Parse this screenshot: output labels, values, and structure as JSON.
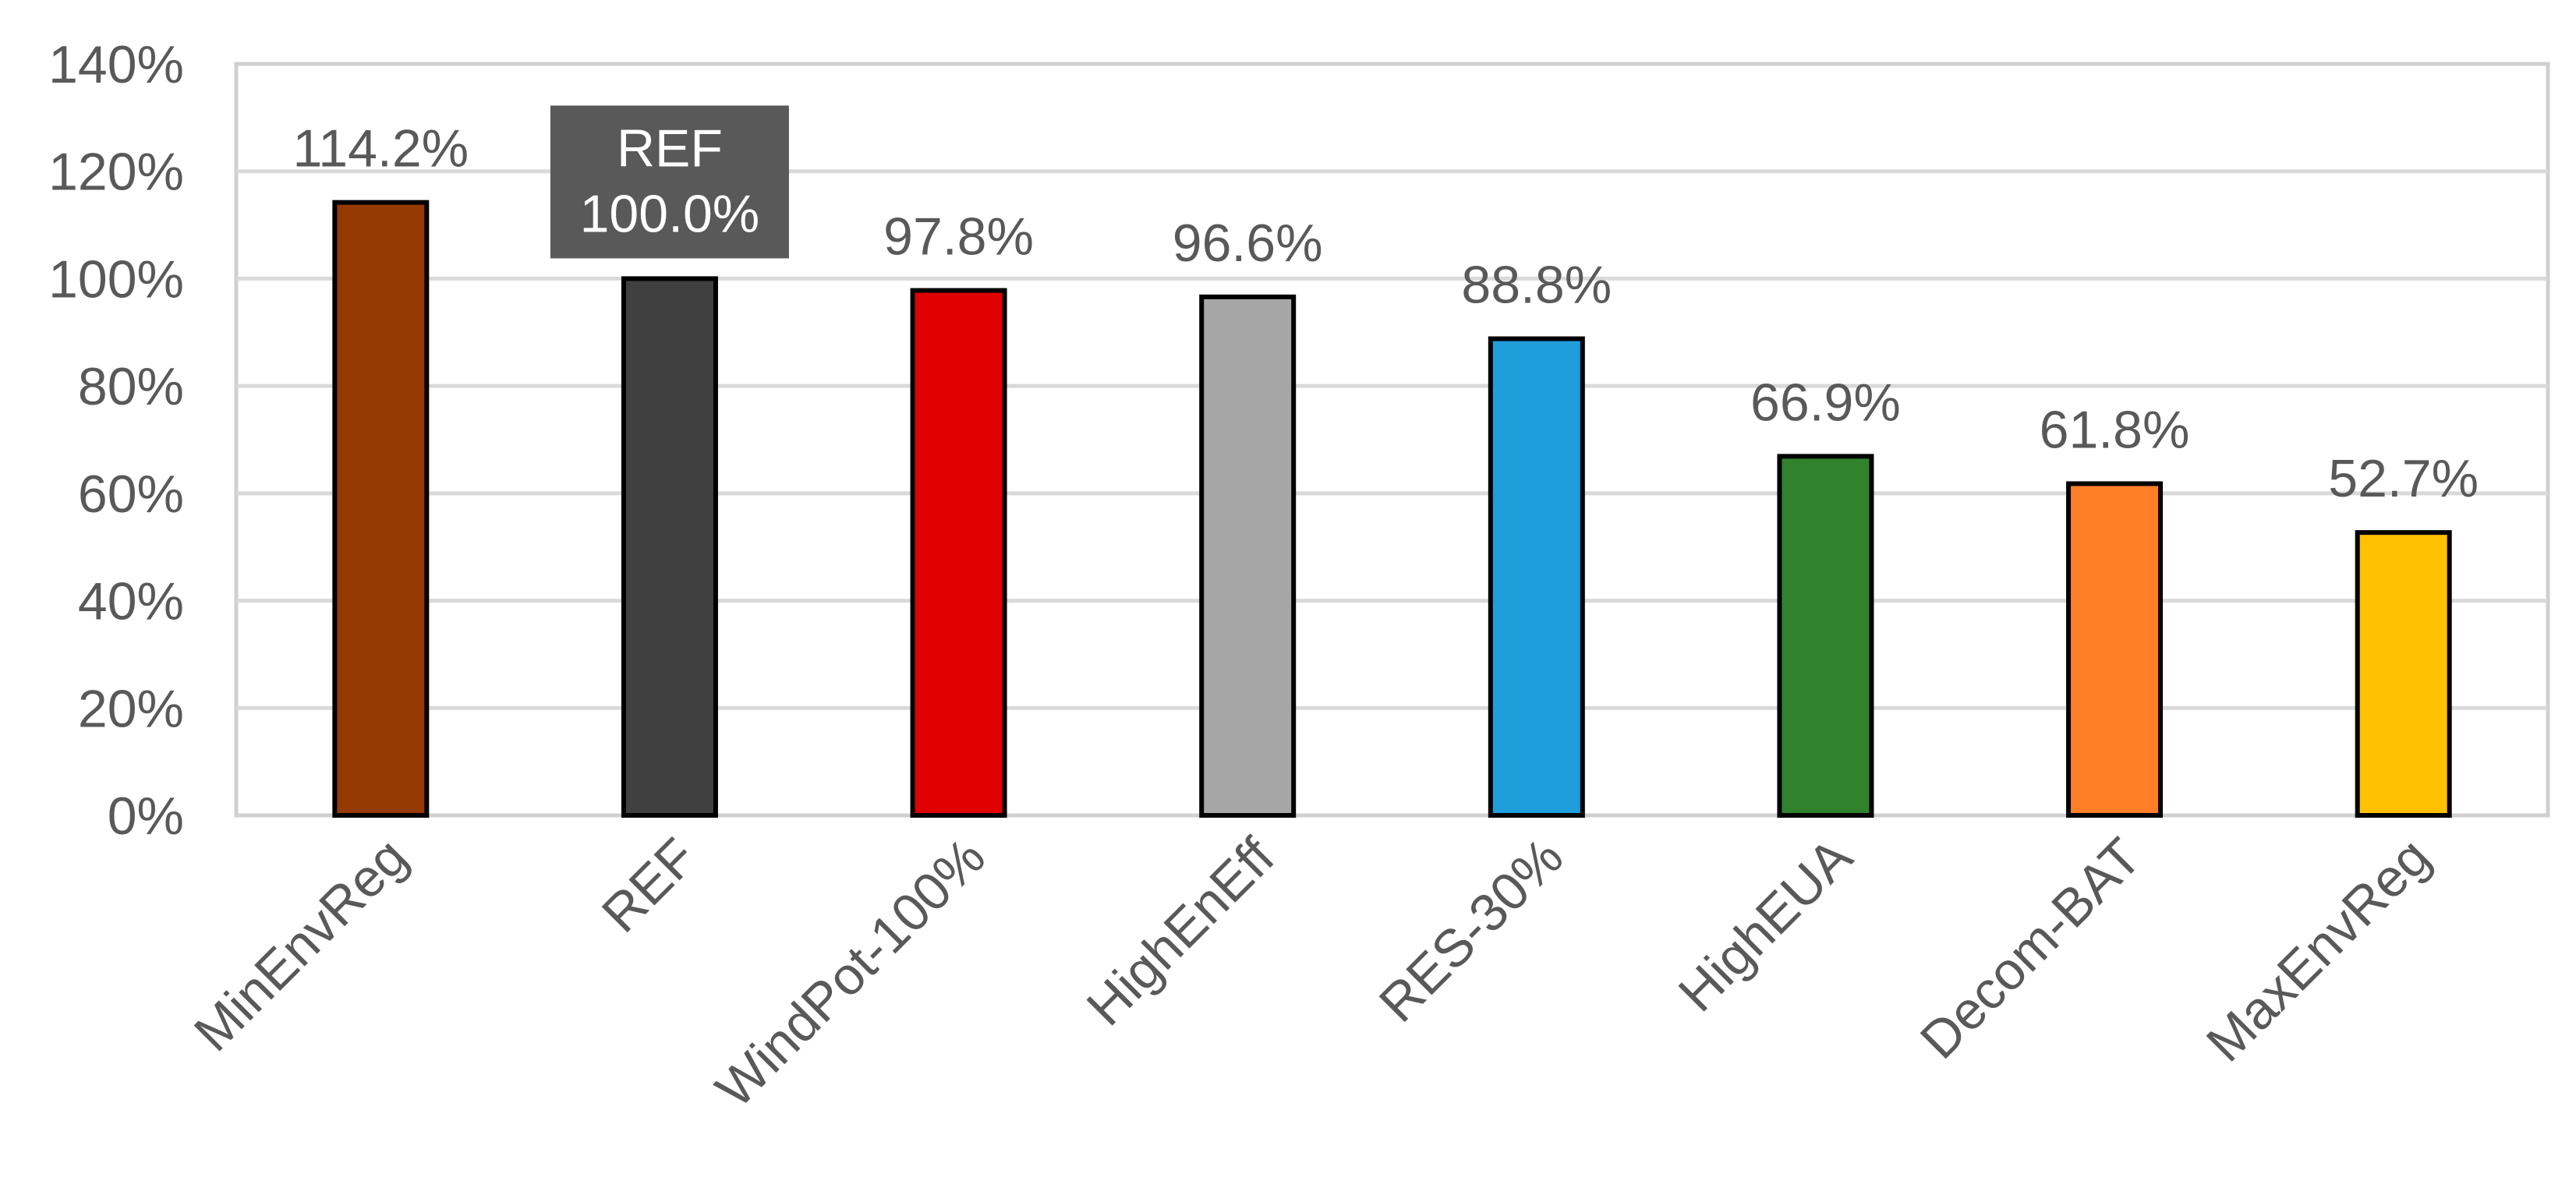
{
  "chart_data": {
    "type": "bar",
    "categories": [
      "MinEnvReg",
      "REF",
      "WindPot-100%",
      "HighEnEff",
      "RES-30%",
      "HighEUA",
      "Decom-BAT",
      "MaxEnvReg"
    ],
    "values": [
      114.2,
      100.0,
      97.8,
      96.6,
      88.8,
      66.9,
      61.8,
      52.7
    ],
    "data_labels": [
      "114.2%",
      "REF\n100.0%",
      "97.8%",
      "96.6%",
      "88.8%",
      "66.9%",
      "61.8%",
      "52.7%"
    ],
    "colors": [
      "#953A00",
      "#404040",
      "#E00000",
      "#A6A6A6",
      "#1E9EDB",
      "#30822C",
      "#FF7F27",
      "#FFC000"
    ],
    "highlight_category": "REF",
    "highlight_label_bg": "#595959",
    "ylim": [
      0,
      140
    ],
    "yticks": [
      0,
      20,
      40,
      60,
      80,
      100,
      120,
      140
    ],
    "ytick_labels": [
      "0%",
      "20%",
      "40%",
      "60%",
      "80%",
      "100%",
      "120%",
      "140%"
    ],
    "grid": true,
    "title": "",
    "xlabel": "",
    "ylabel": ""
  }
}
